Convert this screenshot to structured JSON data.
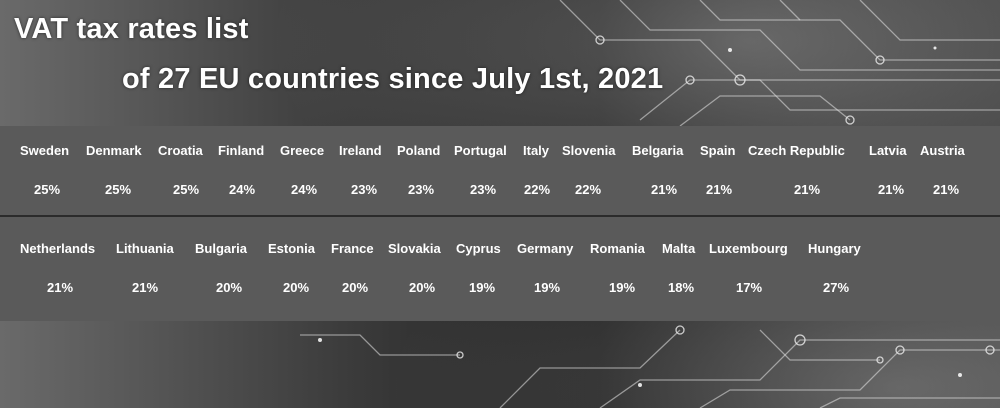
{
  "title_line1": "VAT tax rates list",
  "title_line2": "of 27 EU countries since July 1st, 2021",
  "row1": [
    {
      "country": "Sweden",
      "rate": "25%"
    },
    {
      "country": "Denmark",
      "rate": "25%"
    },
    {
      "country": "Croatia",
      "rate": "25%"
    },
    {
      "country": "Finland",
      "rate": "24%"
    },
    {
      "country": "Greece",
      "rate": "24%"
    },
    {
      "country": "Ireland",
      "rate": "23%"
    },
    {
      "country": "Poland",
      "rate": "23%"
    },
    {
      "country": "Portugal",
      "rate": "23%"
    },
    {
      "country": "Italy",
      "rate": "22%"
    },
    {
      "country": "Slovenia",
      "rate": "22%"
    },
    {
      "country": "Belgaria",
      "rate": "21%"
    },
    {
      "country": "Spain",
      "rate": "21%"
    },
    {
      "country": "Czech Republic",
      "rate": "21%"
    },
    {
      "country": "Latvia",
      "rate": "21%"
    },
    {
      "country": "Austria",
      "rate": "21%"
    }
  ],
  "row2": [
    {
      "country": "Netherlands",
      "rate": "21%"
    },
    {
      "country": "Lithuania",
      "rate": "21%"
    },
    {
      "country": "Bulgaria",
      "rate": "20%"
    },
    {
      "country": "Estonia",
      "rate": "20%"
    },
    {
      "country": "France",
      "rate": "20%"
    },
    {
      "country": "Slovakia",
      "rate": "20%"
    },
    {
      "country": "Cyprus",
      "rate": "19%"
    },
    {
      "country": "Germany",
      "rate": "19%"
    },
    {
      "country": "Romania",
      "rate": "19%"
    },
    {
      "country": "Malta",
      "rate": "18%"
    },
    {
      "country": "Luxembourg",
      "rate": "17%"
    },
    {
      "country": "Hungary",
      "rate": "27%"
    }
  ]
}
